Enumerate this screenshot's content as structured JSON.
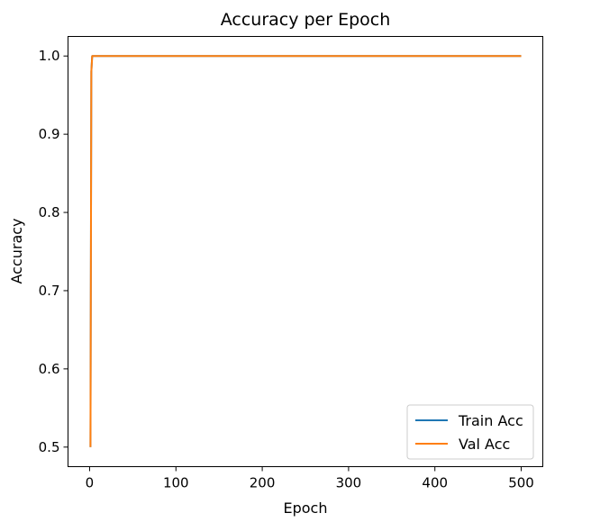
{
  "chart_data": {
    "type": "line",
    "title": "Accuracy per Epoch",
    "xlabel": "Epoch",
    "ylabel": "Accuracy",
    "xlim": [
      -25,
      525
    ],
    "ylim": [
      0.475,
      1.025
    ],
    "xticks": [
      0,
      100,
      200,
      300,
      400,
      500
    ],
    "yticks": [
      0.5,
      0.6,
      0.7,
      0.8,
      0.9,
      1.0
    ],
    "xtick_labels": [
      "0",
      "100",
      "200",
      "300",
      "400",
      "500"
    ],
    "ytick_labels": [
      "0.5",
      "0.6",
      "0.7",
      "0.8",
      "0.9",
      "1.0"
    ],
    "grid": false,
    "legend": "lower-right",
    "series": [
      {
        "name": "Train Acc",
        "color": "#1f77b4",
        "x": [
          1,
          2,
          3,
          4,
          5,
          10,
          50,
          100,
          200,
          300,
          400,
          500
        ],
        "y": [
          0.5,
          0.98,
          1.0,
          1.0,
          1.0,
          1.0,
          1.0,
          1.0,
          1.0,
          1.0,
          1.0,
          1.0
        ]
      },
      {
        "name": "Val Acc",
        "color": "#ff7f0e",
        "x": [
          1,
          2,
          3,
          4,
          5,
          10,
          50,
          100,
          200,
          300,
          400,
          500
        ],
        "y": [
          0.5,
          0.98,
          1.0,
          1.0,
          1.0,
          1.0,
          1.0,
          1.0,
          1.0,
          1.0,
          1.0,
          1.0
        ]
      }
    ]
  }
}
